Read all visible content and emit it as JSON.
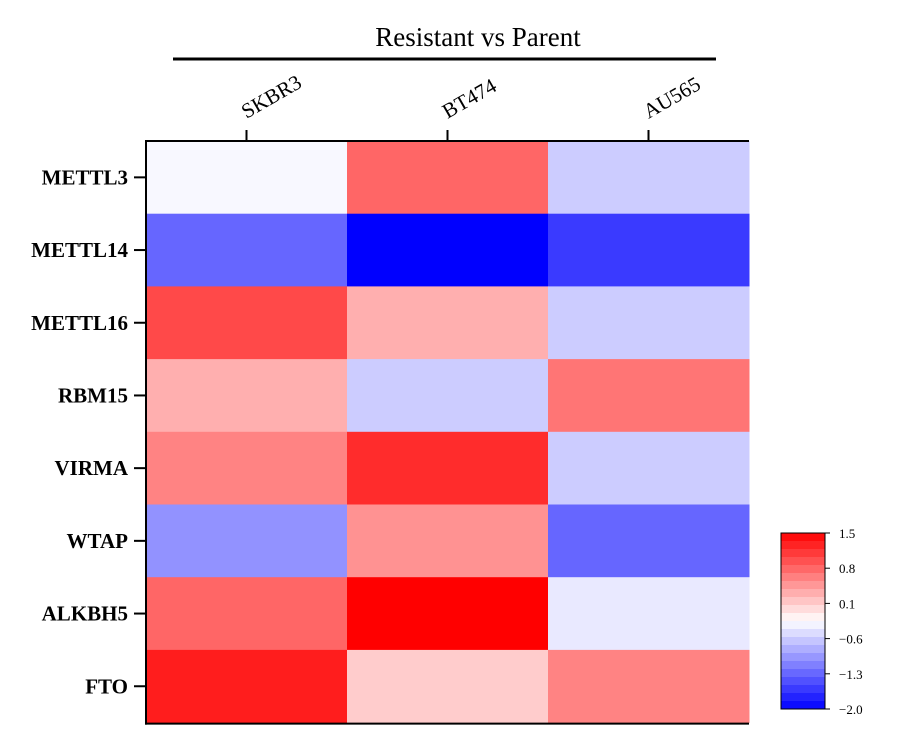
{
  "chart_data": {
    "type": "heatmap",
    "title": "Resistant vs Parent",
    "columns": [
      "SKBR3",
      "BT474",
      "AU565"
    ],
    "rows": [
      "METTL3",
      "METTL14",
      "METTL16",
      "RBM15",
      "VIRMA",
      "WTAP",
      "ALKBH5",
      "FTO"
    ],
    "values": [
      [
        -0.3,
        0.8,
        -0.6
      ],
      [
        -1.3,
        -2.0,
        -1.6
      ],
      [
        1.0,
        0.3,
        -0.6
      ],
      [
        0.3,
        -0.6,
        0.7
      ],
      [
        0.6,
        1.2,
        -0.6
      ],
      [
        -1.0,
        0.5,
        -1.3
      ],
      [
        0.8,
        1.5,
        -0.4
      ],
      [
        1.3,
        0.1,
        0.6
      ]
    ],
    "colorbar": {
      "min": -2.0,
      "max": 1.5,
      "ticks": [
        "1.5",
        "0.8",
        "0.1",
        "−0.6",
        "−1.3",
        "−2.0"
      ],
      "low_color": "#0000ff",
      "mid_color": "#ffffff",
      "high_color": "#ff0000"
    }
  }
}
